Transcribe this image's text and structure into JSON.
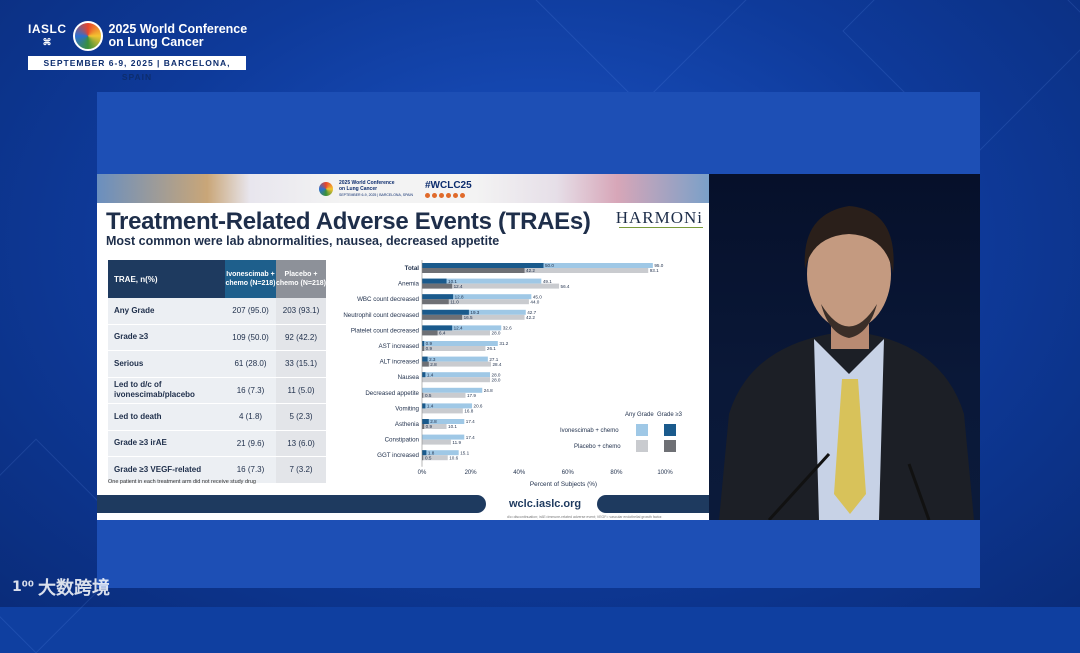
{
  "conference": {
    "org": "IASLC",
    "title_line1": "2025 World Conference",
    "title_line2": "on Lung Cancer",
    "dates": "SEPTEMBER 6-9, 2025  |  BARCELONA, SPAIN"
  },
  "slide": {
    "banner": {
      "logo_line1": "2025 World Conference",
      "logo_line2": "on Lung Cancer",
      "logo_dates": "SEPTEMBER 6-9, 2025 | BARCELONA, SPAIN",
      "hashtag": "#WCLC25"
    },
    "title": "Treatment-Related Adverse Events (TRAEs)",
    "subtitle": "Most common were lab abnormalities, nausea, decreased appetite",
    "brand": "HARMONi",
    "table": {
      "headers": {
        "col0": "TRAE, n(%)",
        "col1": "Ivonescimab + chemo (N=218)",
        "col2": "Placebo + chemo (N=218)"
      },
      "rows": [
        {
          "label": "Any Grade",
          "ivo": "207 (95.0)",
          "pbo": "203 (93.1)"
        },
        {
          "label": "Grade ≥3",
          "ivo": "109 (50.0)",
          "pbo": "92 (42.2)"
        },
        {
          "label": "Serious",
          "ivo": "61 (28.0)",
          "pbo": "33 (15.1)"
        },
        {
          "label": "Led to d/c of ivonescimab/placebo",
          "ivo": "16 (7.3)",
          "pbo": "11 (5.0)"
        },
        {
          "label": "Led to death",
          "ivo": "4 (1.8)",
          "pbo": "5 (2.3)"
        },
        {
          "label": "Grade ≥3 irAE",
          "ivo": "21 (9.6)",
          "pbo": "13 (6.0)"
        },
        {
          "label": "Grade ≥3 VEGF-related",
          "ivo": "16 (7.3)",
          "pbo": "7 (3.2)"
        }
      ],
      "footnote": "One patient in each treatment arm did not receive study drug"
    },
    "legend": {
      "any_grade": "Any Grade",
      "grade3": "Grade ≥3",
      "ivo": "Ivonescimab + chemo",
      "pbo": "Placebo + chemo"
    },
    "footer": {
      "url": "wclc.iaslc.org",
      "tiny": "d/c=discontinuation; irAE=immune-related adverse event; VEGF= vascular endothelial growth factor."
    }
  },
  "chart_data": {
    "type": "bar",
    "orientation": "horizontal",
    "xlabel": "Percent of Subjects (%)",
    "xlim": [
      0,
      100
    ],
    "xticks": [
      "0%",
      "20%",
      "40%",
      "60%",
      "80%",
      "100%"
    ],
    "categories": [
      "Total",
      "Anemia",
      "WBC count decreased",
      "Neutrophil count decreased",
      "Platelet count decreased",
      "AST increased",
      "ALT increased",
      "Nausea",
      "Decreased appetite",
      "Vomiting",
      "Asthenia",
      "Constipation",
      "GGT increased"
    ],
    "series": [
      {
        "name": "Ivonescimab + chemo Any Grade",
        "values": [
          95.0,
          49.1,
          45.0,
          42.7,
          32.6,
          31.2,
          27.1,
          28.0,
          24.8,
          20.6,
          17.4,
          17.4,
          15.1
        ]
      },
      {
        "name": "Ivonescimab + chemo Grade ≥3",
        "values": [
          50.0,
          10.1,
          12.8,
          19.3,
          12.4,
          0.9,
          2.3,
          1.4,
          null,
          1.4,
          2.8,
          null,
          1.8
        ]
      },
      {
        "name": "Placebo + chemo Any Grade",
        "values": [
          93.1,
          56.4,
          44.0,
          42.2,
          28.0,
          26.1,
          28.4,
          28.0,
          17.9,
          16.8,
          10.1,
          11.9,
          10.6
        ]
      },
      {
        "name": "Placebo + chemo Grade ≥3",
        "values": [
          42.2,
          12.4,
          11.0,
          16.5,
          6.4,
          0.9,
          2.8,
          null,
          0.5,
          null,
          0.9,
          null,
          0.5
        ]
      }
    ],
    "colors": {
      "ivo_any": "#9fc8e6",
      "ivo_g3": "#1a5a8c",
      "pbo_any": "#c9cbcf",
      "pbo_g3": "#6e7075"
    }
  },
  "watermark": {
    "mark": "1⁰⁰",
    "text": "大数跨境"
  }
}
